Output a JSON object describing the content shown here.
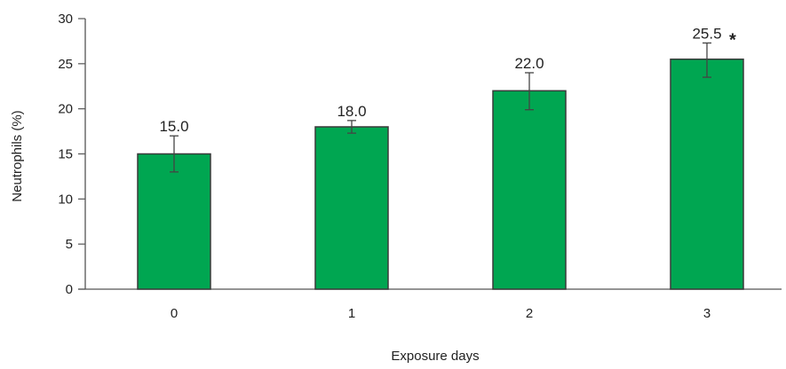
{
  "chart_data": {
    "type": "bar",
    "categories": [
      "0",
      "1",
      "2",
      "3"
    ],
    "values": [
      15.0,
      18.0,
      22.0,
      25.5
    ],
    "error_upper": [
      17.0,
      18.7,
      24.0,
      27.3
    ],
    "error_lower": [
      13.0,
      17.3,
      19.9,
      23.5
    ],
    "data_labels": [
      "15.0",
      "18.0",
      "22.0",
      "25.5"
    ],
    "annotations": [
      "",
      "",
      "",
      "*"
    ],
    "xlabel": "Exposure days",
    "ylabel": "Neutrophils (%)",
    "ylim": [
      0,
      30
    ],
    "yticks": [
      0,
      5,
      10,
      15,
      20,
      25,
      30
    ],
    "ytick_labels": [
      "0",
      "5",
      "10",
      "15",
      "20",
      "25",
      "30"
    ],
    "grid": false,
    "legend": "none",
    "bar_color": "#00a651",
    "bar_edge_color": "#3a3a3a"
  }
}
